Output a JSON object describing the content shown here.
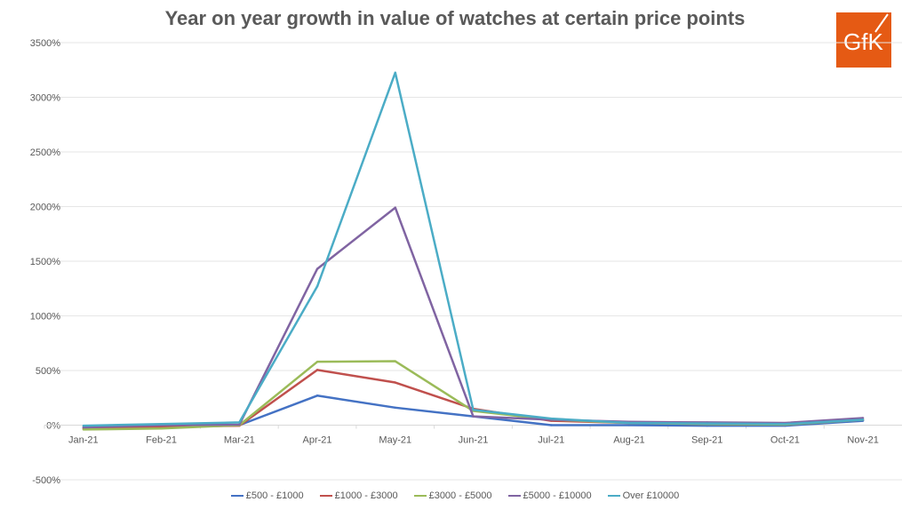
{
  "chart_data": {
    "type": "line",
    "title": "Year on year growth in value of watches at certain price points",
    "categories": [
      "Jan-21",
      "Feb-21",
      "Mar-21",
      "Apr-21",
      "May-21",
      "Jun-21",
      "Jul-21",
      "Aug-21",
      "Sep-21",
      "Oct-21",
      "Nov-21"
    ],
    "ylim": [
      -500,
      3500
    ],
    "yticks": [
      -500,
      0,
      500,
      1000,
      1500,
      2000,
      2500,
      3000,
      3500
    ],
    "ytick_format": "percent",
    "grid": true,
    "legend_placement": "bottom",
    "series": [
      {
        "name": "£500 - £1000",
        "color": "#4472c4",
        "values": [
          -20,
          -5,
          0,
          270,
          160,
          80,
          0,
          0,
          -5,
          -5,
          40
        ]
      },
      {
        "name": "£1000 - £3000",
        "color": "#c0504d",
        "values": [
          -30,
          -15,
          -5,
          505,
          390,
          150,
          40,
          20,
          10,
          5,
          50
        ]
      },
      {
        "name": "£3000 - £5000",
        "color": "#9bbb59",
        "values": [
          -40,
          -30,
          0,
          580,
          585,
          130,
          50,
          20,
          10,
          5,
          50
        ]
      },
      {
        "name": "£5000 - £10000",
        "color": "#8064a2",
        "values": [
          -20,
          0,
          5,
          1430,
          1990,
          80,
          50,
          30,
          25,
          20,
          65
        ]
      },
      {
        "name": "Over £10000",
        "color": "#4bacc6",
        "values": [
          -5,
          10,
          25,
          1270,
          3225,
          140,
          60,
          20,
          15,
          10,
          50
        ]
      }
    ]
  },
  "logo": {
    "text": "GfK",
    "color": "#e55a14"
  }
}
